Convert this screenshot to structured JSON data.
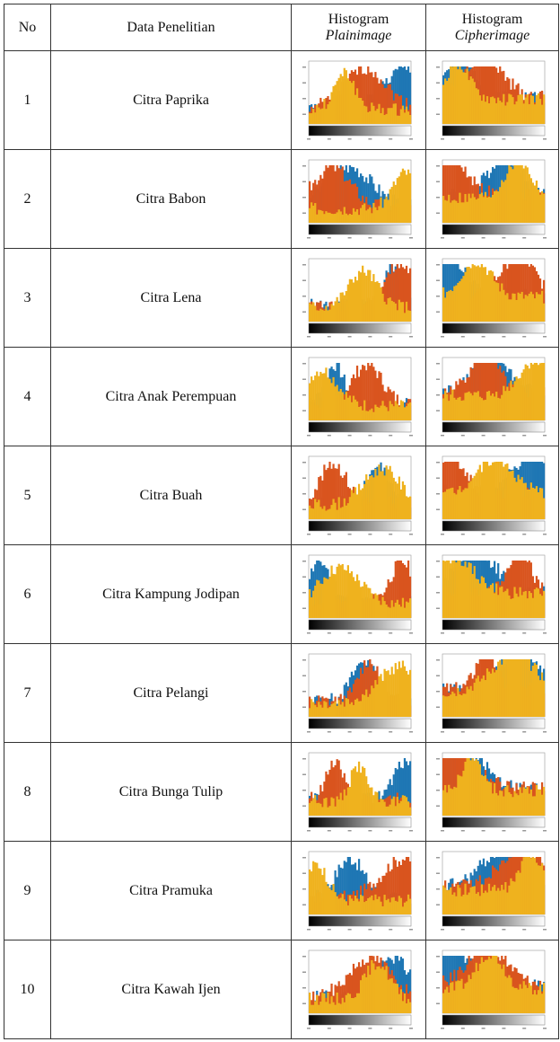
{
  "table": {
    "headers": {
      "no": "No",
      "data": "Data Penelitian",
      "plain_line1": "Histogram",
      "plain_line2": "Plainimage",
      "cipher_line1": "Histogram",
      "cipher_line2": "Cipherimage"
    },
    "rows": [
      {
        "no": "1",
        "name": "Citra Paprika"
      },
      {
        "no": "2",
        "name": "Citra Babon"
      },
      {
        "no": "3",
        "name": "Citra Lena"
      },
      {
        "no": "4",
        "name": "Citra Anak Perempuan"
      },
      {
        "no": "5",
        "name": "Citra Buah"
      },
      {
        "no": "6",
        "name": "Citra Kampung Jodipan"
      },
      {
        "no": "7",
        "name": "Citra Pelangi"
      },
      {
        "no": "8",
        "name": "Citra Bunga Tulip"
      },
      {
        "no": "9",
        "name": "Citra Pramuka"
      },
      {
        "no": "10",
        "name": "Citra Kawah Ijen"
      }
    ]
  },
  "colors": {
    "red_channel": "#d9541e",
    "green_channel": "#efb21e",
    "blue_channel": "#1f77b4"
  }
}
